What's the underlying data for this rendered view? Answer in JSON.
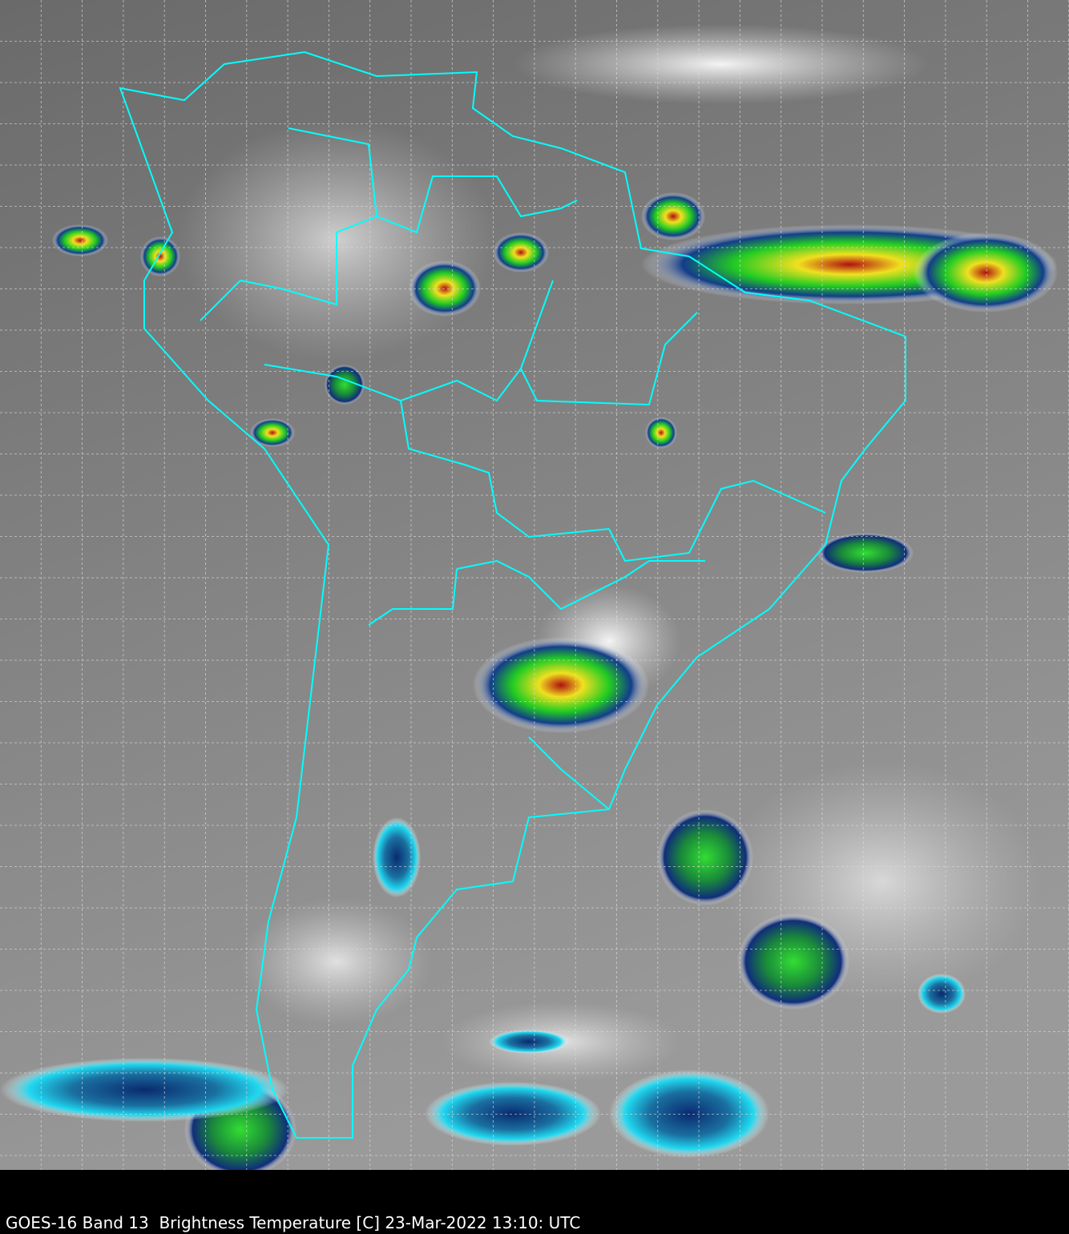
{
  "caption": "GOES-16 Band 13  Brightness Temperature [C] 23-Mar-2022 13:10: UTC",
  "colors": {
    "background": "#000000",
    "coastline": "#00ffff",
    "grid": "#dddddd",
    "cloud_cold_low": "#00e5ff",
    "cloud_blue": "#103a8a",
    "cloud_green": "#22dd22",
    "cloud_yellow": "#f0f020",
    "cloud_red": "#e02010"
  }
}
